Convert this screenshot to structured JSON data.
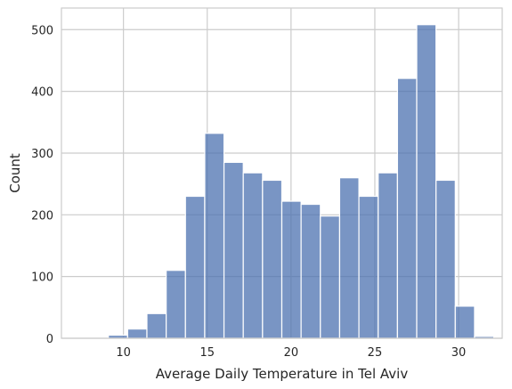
{
  "chart_data": {
    "type": "bar",
    "subtype": "histogram",
    "xlabel": "Average Daily Temperature in Tel Aviv",
    "ylabel": "Count",
    "xlim": [
      6.3,
      32.6
    ],
    "ylim": [
      0,
      535
    ],
    "xticks": [
      10,
      15,
      20,
      25,
      30
    ],
    "yticks": [
      0,
      100,
      200,
      300,
      400,
      500
    ],
    "grid": true,
    "bin_edges": [
      7.95,
      9.1,
      10.25,
      11.4,
      12.55,
      13.7,
      14.85,
      16.0,
      17.15,
      18.3,
      19.45,
      20.6,
      21.75,
      22.9,
      24.05,
      25.2,
      26.35,
      27.5,
      28.65,
      29.8,
      30.95,
      32.1
    ],
    "values": [
      0,
      5,
      15,
      40,
      110,
      230,
      332,
      285,
      268,
      256,
      222,
      217,
      198,
      260,
      230,
      268,
      421,
      508,
      256,
      52,
      3
    ],
    "bar_color": "#4c72b0"
  }
}
